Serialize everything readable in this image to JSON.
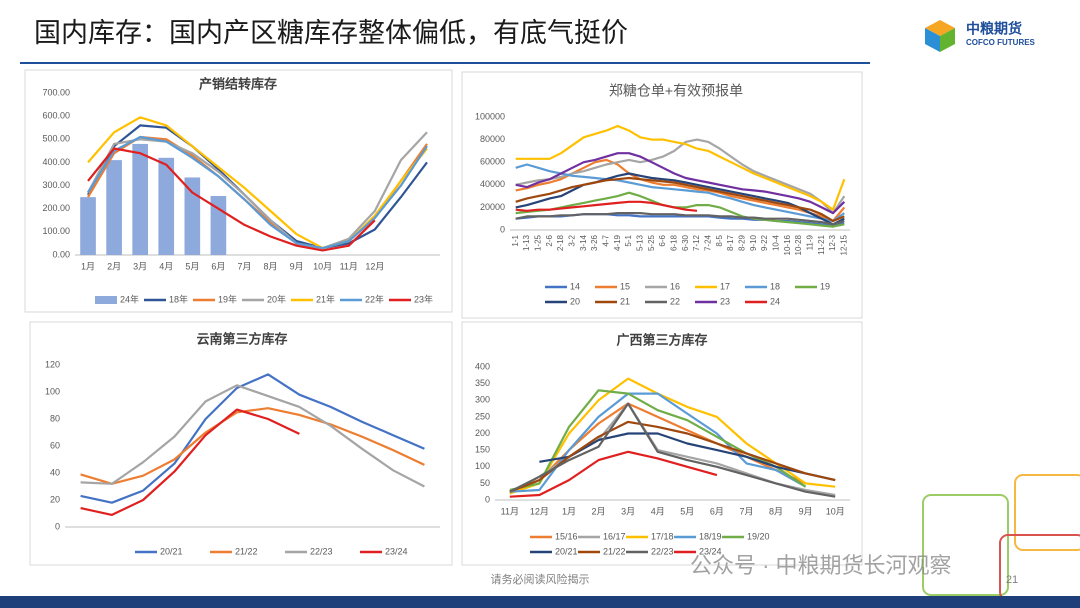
{
  "header": {
    "title": "国内库存：国内产区糖库存整体偏低，有底气挺价"
  },
  "logo": {
    "name": "中粮期货",
    "name_en": "COFCO FUTURES"
  },
  "footer": {
    "disclaimer": "请务必阅读风险揭示",
    "page": "21",
    "watermark": "公众号 · 中粮期货长河观察"
  },
  "chart_data": [
    {
      "type": "line",
      "title": "产销结转库存",
      "categories": [
        "1月",
        "2月",
        "3月",
        "4月",
        "5月",
        "6月",
        "7月",
        "8月",
        "9月",
        "10月",
        "11月",
        "12月",
        null,
        null
      ],
      "ylim": [
        0,
        700
      ],
      "yticks": [
        {
          "value": 0,
          "label": "0.00"
        },
        {
          "value": 100,
          "label": "100.00"
        },
        {
          "value": 200,
          "label": "200.00"
        },
        {
          "value": 300,
          "label": "300.00"
        },
        {
          "value": 400,
          "label": "400.00"
        },
        {
          "value": 500,
          "label": "500.00"
        },
        {
          "value": 600,
          "label": "600.00"
        },
        {
          "value": 700,
          "label": "700.00"
        }
      ],
      "grid": false,
      "series": [
        {
          "name": "24年",
          "type": "bar",
          "color": "#8ea9db",
          "values": [
            250,
            410,
            480,
            420,
            335,
            255,
            null,
            null,
            null,
            null,
            null,
            null,
            null,
            null
          ]
        },
        {
          "name": "18年",
          "color": "#2f5597",
          "values": [
            260,
            470,
            560,
            550,
            470,
            370,
            260,
            150,
            60,
            30,
            50,
            110,
            250,
            400
          ]
        },
        {
          "name": "19年",
          "color": "#ed7d31",
          "values": [
            250,
            440,
            510,
            500,
            430,
            340,
            240,
            140,
            50,
            30,
            60,
            160,
            320,
            480
          ]
        },
        {
          "name": "20年",
          "color": "#a5a5a5",
          "values": [
            270,
            480,
            500,
            490,
            440,
            360,
            260,
            150,
            50,
            30,
            70,
            190,
            410,
            530
          ]
        },
        {
          "name": "21年",
          "color": "#ffc000",
          "values": [
            400,
            530,
            595,
            560,
            470,
            380,
            290,
            190,
            90,
            30,
            60,
            170,
            320,
            460
          ]
        },
        {
          "name": "22年",
          "color": "#5b9bd5",
          "values": [
            270,
            450,
            510,
            490,
            420,
            340,
            240,
            130,
            50,
            30,
            60,
            160,
            300,
            470
          ]
        },
        {
          "name": "23年",
          "color": "#e02020",
          "values": [
            320,
            460,
            440,
            390,
            270,
            200,
            130,
            80,
            40,
            20,
            40,
            150,
            null,
            null
          ]
        }
      ]
    },
    {
      "type": "line",
      "title": "郑糖仓单+有效预报单",
      "categories": [
        "1-1",
        "1-13",
        "1-25",
        "2-6",
        "2-18",
        "3-2",
        "3-14",
        "3-26",
        "4-7",
        "4-19",
        "5-1",
        "5-13",
        "5-25",
        "6-6",
        "6-18",
        "6-30",
        "7-12",
        "7-24",
        "8-5",
        "8-17",
        "8-29",
        "9-10",
        "9-22",
        "10-4",
        "10-16",
        "10-28",
        "11-9",
        "11-21",
        "12-3",
        "12-15"
      ],
      "ylim": [
        0,
        100000
      ],
      "yticks": [
        0,
        20000,
        40000,
        60000,
        80000,
        100000
      ],
      "grid": false,
      "series": [
        {
          "name": "14",
          "color": "#4472c4",
          "values": [
            10000,
            11000,
            12000,
            12000,
            12000,
            13000,
            14000,
            14000,
            14000,
            13000,
            13000,
            12000,
            12000,
            12000,
            12000,
            12000,
            12000,
            12000,
            11000,
            10000,
            10000,
            9000,
            9000,
            8000,
            8000,
            7000,
            6000,
            5000,
            4000,
            6000
          ]
        },
        {
          "name": "15",
          "color": "#ed7d31",
          "values": [
            35000,
            37000,
            40000,
            42000,
            45000,
            50000,
            55000,
            60000,
            62000,
            58000,
            50000,
            45000,
            42000,
            40000,
            40000,
            38000,
            36000,
            35000,
            33000,
            30000,
            28000,
            26000,
            24000,
            22000,
            20000,
            18000,
            15000,
            12000,
            8000,
            20000
          ]
        },
        {
          "name": "16",
          "color": "#a5a5a5",
          "values": [
            40000,
            42000,
            44000,
            45000,
            47000,
            50000,
            52000,
            55000,
            58000,
            60000,
            62000,
            60000,
            62000,
            65000,
            70000,
            78000,
            80000,
            78000,
            72000,
            65000,
            58000,
            52000,
            48000,
            44000,
            40000,
            36000,
            32000,
            25000,
            15000,
            30000
          ]
        },
        {
          "name": "17",
          "color": "#ffc000",
          "values": [
            63000,
            63000,
            63000,
            63000,
            68000,
            75000,
            82000,
            85000,
            88000,
            92000,
            88000,
            82000,
            80000,
            80000,
            78000,
            76000,
            72000,
            70000,
            65000,
            60000,
            55000,
            50000,
            46000,
            42000,
            38000,
            34000,
            30000,
            25000,
            18000,
            45000
          ]
        },
        {
          "name": "18",
          "color": "#5b9bd5",
          "values": [
            55000,
            58000,
            55000,
            52000,
            50000,
            48000,
            47000,
            46000,
            45000,
            44000,
            42000,
            40000,
            38000,
            37000,
            36000,
            35000,
            34000,
            33000,
            30000,
            28000,
            25000,
            22000,
            20000,
            18000,
            16000,
            14000,
            12000,
            10000,
            8000,
            15000
          ]
        },
        {
          "name": "19",
          "color": "#70ad47",
          "values": [
            15000,
            16000,
            17000,
            18000,
            20000,
            22000,
            24000,
            26000,
            28000,
            30000,
            33000,
            30000,
            26000,
            22000,
            20000,
            20000,
            22000,
            22000,
            20000,
            16000,
            12000,
            10000,
            9000,
            8000,
            7000,
            6000,
            5000,
            4000,
            3000,
            5000
          ]
        },
        {
          "name": "20",
          "color": "#264478",
          "values": [
            20000,
            22000,
            25000,
            28000,
            30000,
            35000,
            40000,
            42000,
            45000,
            48000,
            50000,
            48000,
            46000,
            45000,
            44000,
            42000,
            40000,
            38000,
            36000,
            34000,
            32000,
            30000,
            28000,
            26000,
            24000,
            20000,
            15000,
            10000,
            5000,
            10000
          ]
        },
        {
          "name": "21",
          "color": "#9e480e",
          "values": [
            25000,
            28000,
            30000,
            32000,
            35000,
            38000,
            40000,
            42000,
            44000,
            45000,
            46000,
            45000,
            44000,
            43000,
            42000,
            40000,
            38000,
            36000,
            34000,
            32000,
            30000,
            28000,
            26000,
            24000,
            22000,
            20000,
            18000,
            14000,
            8000,
            12000
          ]
        },
        {
          "name": "22",
          "color": "#636363",
          "values": [
            10000,
            12000,
            12000,
            12000,
            13000,
            13000,
            14000,
            14000,
            14000,
            15000,
            15000,
            15000,
            14000,
            14000,
            14000,
            13000,
            13000,
            13000,
            12000,
            12000,
            11000,
            11000,
            10000,
            10000,
            10000,
            9000,
            8000,
            7000,
            5000,
            8000
          ]
        },
        {
          "name": "23",
          "color": "#7030a0",
          "values": [
            40000,
            38000,
            42000,
            45000,
            50000,
            55000,
            60000,
            62000,
            65000,
            68000,
            68000,
            65000,
            60000,
            55000,
            50000,
            46000,
            44000,
            42000,
            40000,
            38000,
            36000,
            35000,
            34000,
            32000,
            30000,
            28000,
            25000,
            20000,
            15000,
            25000
          ]
        },
        {
          "name": "24",
          "color": "#e02020",
          "values": [
            18000,
            17000,
            18000,
            18000,
            19000,
            20000,
            21000,
            22000,
            23000,
            24000,
            25000,
            25000,
            24000,
            22000,
            20000,
            18000,
            17000,
            null,
            null,
            null,
            null,
            null,
            null,
            null,
            null,
            null,
            null,
            null,
            null,
            null
          ]
        }
      ]
    },
    {
      "type": "line",
      "title": "云南第三方库存",
      "categories": [
        null,
        null,
        null,
        null,
        null,
        null,
        null,
        null,
        null,
        null,
        null,
        null
      ],
      "ylim": [
        0,
        120
      ],
      "yticks": [
        0,
        20,
        40,
        60,
        80,
        100,
        120
      ],
      "grid": false,
      "series": [
        {
          "name": "20/21",
          "color": "#4472c4",
          "values": [
            23,
            18,
            27,
            47,
            80,
            103,
            113,
            98,
            89,
            78,
            68,
            58
          ]
        },
        {
          "name": "21/22",
          "color": "#ed7d31",
          "values": [
            39,
            32,
            38,
            50,
            70,
            85,
            88,
            83,
            76,
            67,
            57,
            46
          ]
        },
        {
          "name": "22/23",
          "color": "#a5a5a5",
          "values": [
            33,
            32,
            48,
            67,
            93,
            105,
            97,
            89,
            75,
            58,
            42,
            30
          ]
        },
        {
          "name": "23/24",
          "color": "#e02020",
          "values": [
            14,
            9,
            20,
            41,
            68,
            87,
            80,
            69,
            null,
            null,
            null,
            null
          ]
        }
      ]
    },
    {
      "type": "line",
      "title": "广西第三方库存",
      "categories": [
        "11月",
        "12月",
        "1月",
        "2月",
        "3月",
        "4月",
        "5月",
        "6月",
        "7月",
        "8月",
        "9月",
        "10月"
      ],
      "ylim": [
        0,
        400
      ],
      "yticks": [
        0,
        50,
        100,
        150,
        200,
        250,
        300,
        350,
        400
      ],
      "grid": false,
      "series": [
        {
          "name": "15/16",
          "color": "#ed7d31",
          "values": [
            25,
            60,
            150,
            230,
            290,
            250,
            210,
            170,
            130,
            90,
            50,
            null
          ]
        },
        {
          "name": "16/17",
          "color": "#a5a5a5",
          "values": [
            20,
            70,
            130,
            180,
            290,
            150,
            130,
            110,
            80,
            50,
            30,
            15
          ]
        },
        {
          "name": "17/18",
          "color": "#ffc000",
          "values": [
            20,
            50,
            200,
            300,
            365,
            320,
            280,
            250,
            170,
            110,
            50,
            40
          ]
        },
        {
          "name": "18/19",
          "color": "#5b9bd5",
          "values": [
            25,
            30,
            150,
            250,
            320,
            320,
            260,
            200,
            110,
            90,
            40,
            null
          ]
        },
        {
          "name": "19/20",
          "color": "#70ad47",
          "values": [
            30,
            50,
            220,
            330,
            320,
            270,
            240,
            190,
            140,
            100,
            40,
            null
          ]
        },
        {
          "name": "20/21",
          "color": "#264478",
          "values": [
            null,
            115,
            130,
            180,
            200,
            200,
            170,
            150,
            130,
            100,
            80,
            60
          ]
        },
        {
          "name": "21/22",
          "color": "#9e480e",
          "values": [
            25,
            60,
            130,
            190,
            235,
            220,
            200,
            170,
            140,
            110,
            80,
            60
          ]
        },
        {
          "name": "22/23",
          "color": "#636363",
          "values": [
            25,
            70,
            120,
            160,
            290,
            145,
            120,
            100,
            75,
            50,
            25,
            10
          ]
        },
        {
          "name": "23/24",
          "color": "#e02020",
          "values": [
            10,
            15,
            60,
            120,
            145,
            125,
            100,
            75,
            null,
            null,
            null,
            null
          ]
        }
      ]
    }
  ]
}
